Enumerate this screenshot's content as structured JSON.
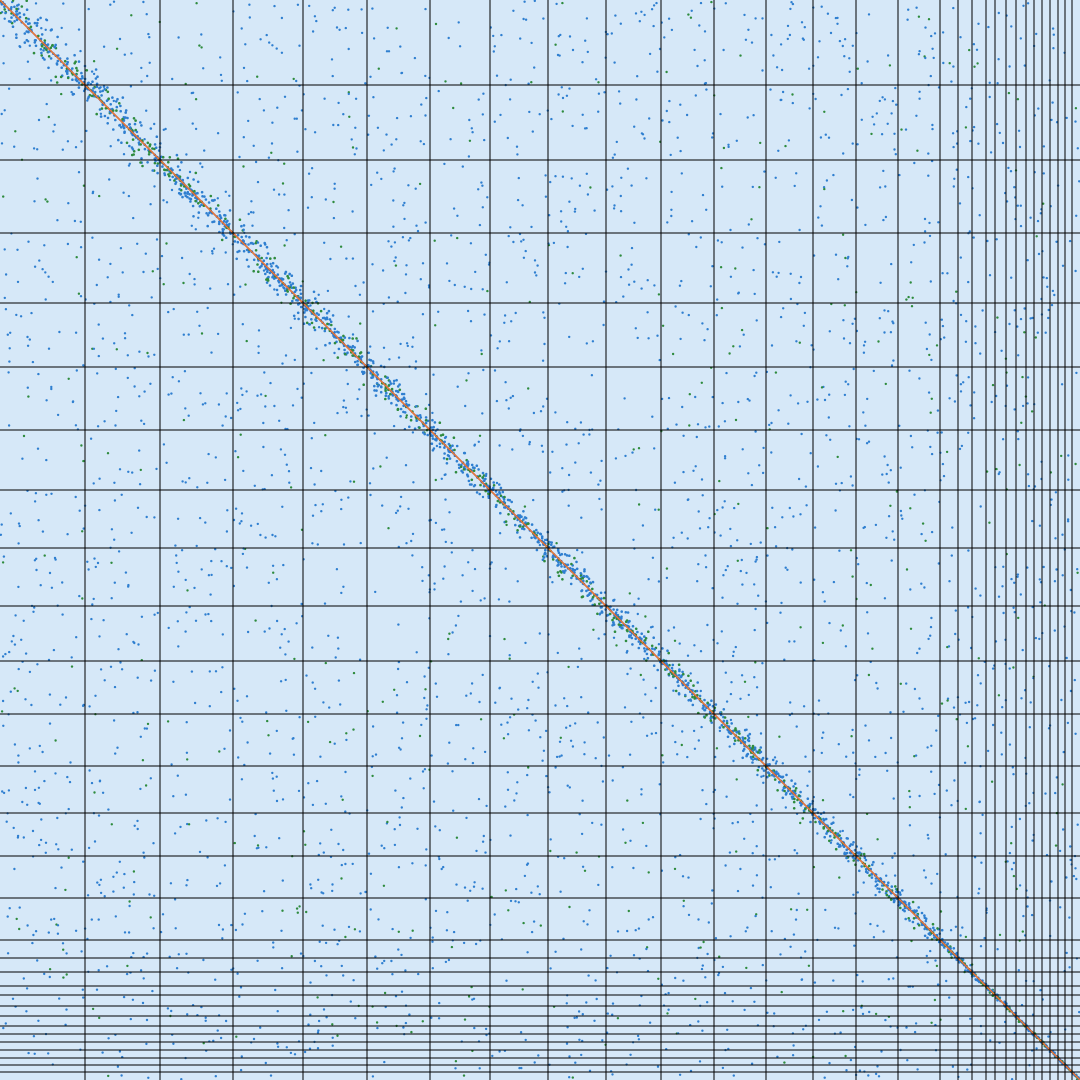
{
  "chart_data": {
    "type": "heatmap",
    "title": "",
    "xlabel": "",
    "ylabel": "",
    "grid": true,
    "symmetric": true,
    "colors": {
      "background": "#d6e8f8",
      "low": "#2f7fd0",
      "mid": "#2e8b3e",
      "high": "#d9482b",
      "grid": "#000000"
    }
  }
}
